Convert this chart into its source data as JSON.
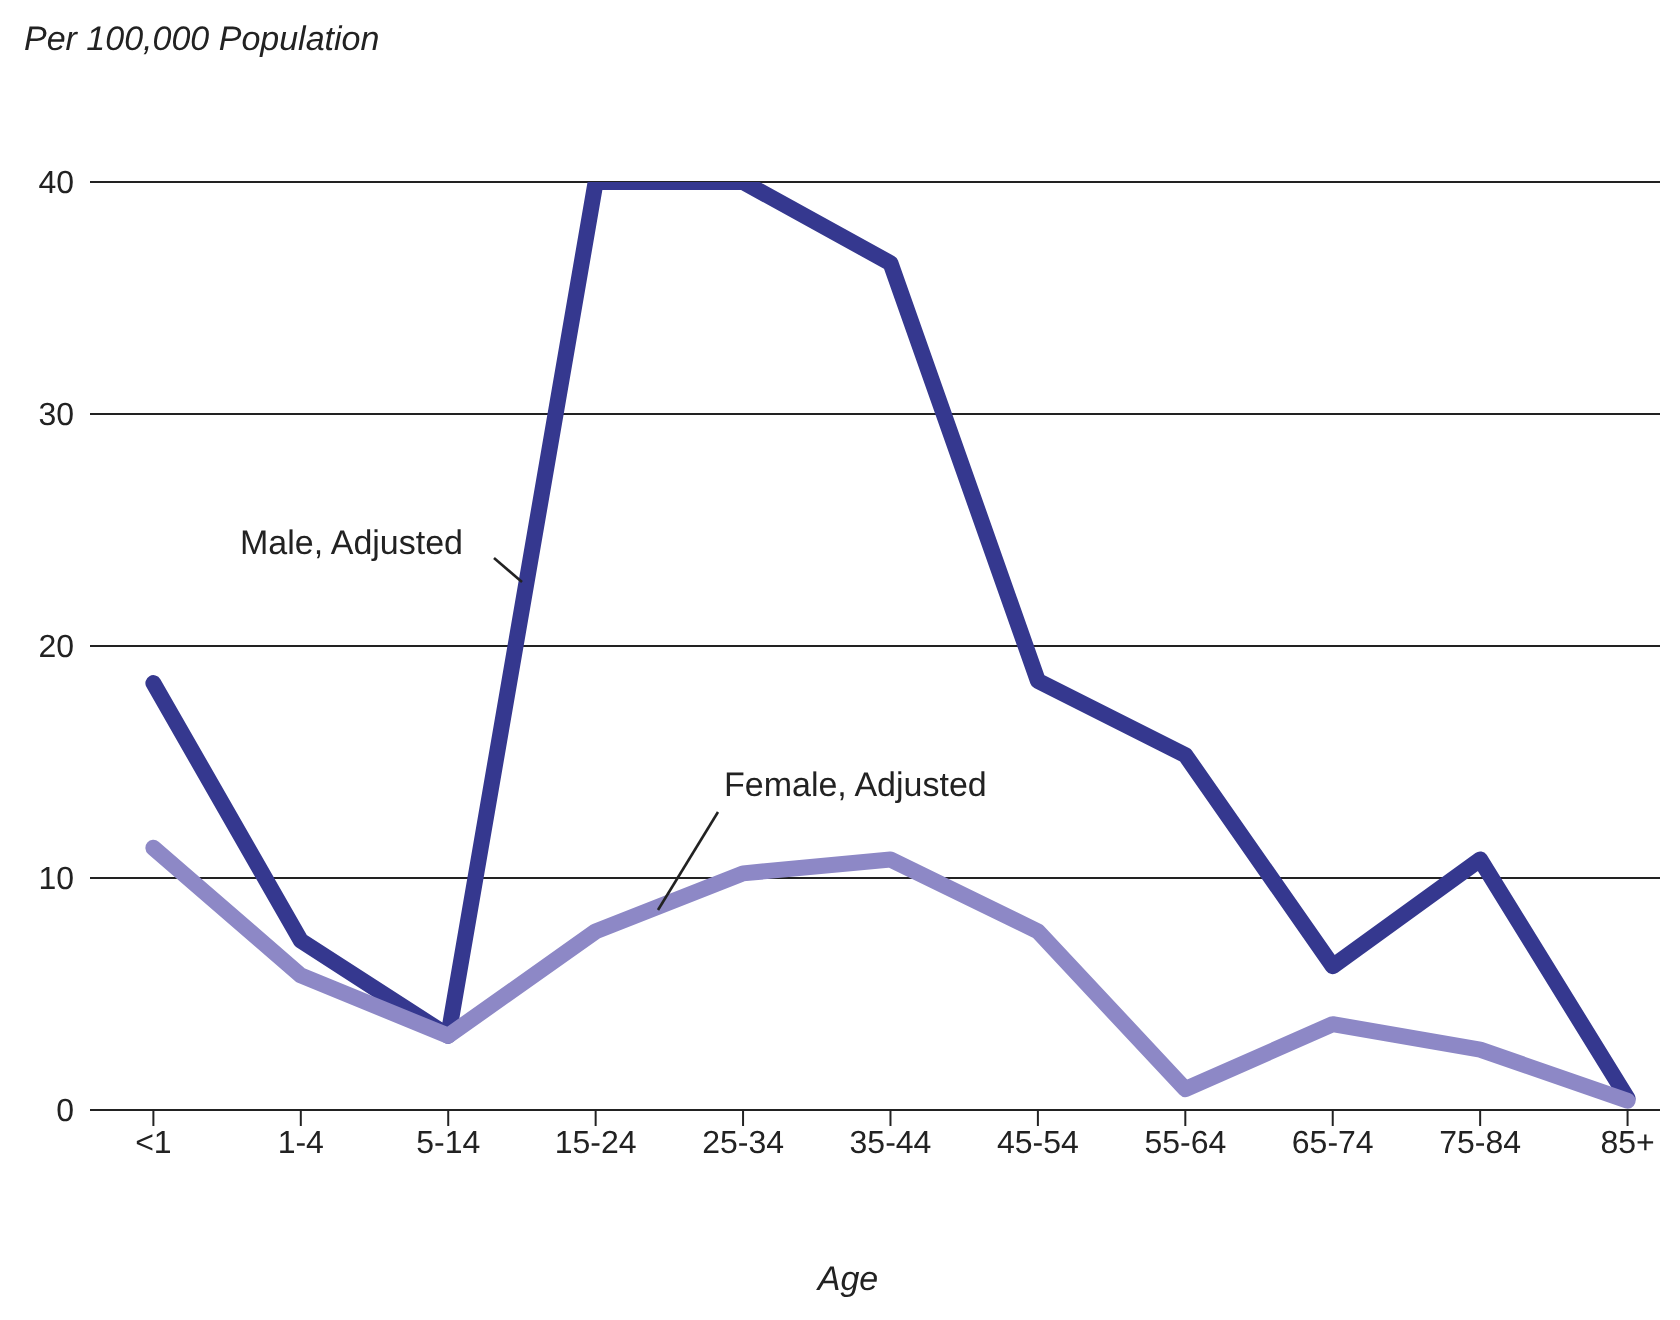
{
  "chart_data": {
    "type": "line",
    "ylabel": "Per 100,000 Population",
    "xlabel": "Age",
    "categories": [
      "<1",
      "1-4",
      "5-14",
      "15-24",
      "25-34",
      "35-44",
      "45-54",
      "55-64",
      "65-74",
      "75-84",
      "85+"
    ],
    "series": [
      {
        "name": "Male, Adjusted",
        "color": "#35388f",
        "values": [
          18.4,
          7.3,
          3.2,
          40,
          40,
          36.5,
          18.5,
          15.3,
          6.2,
          10.8,
          0.5
        ]
      },
      {
        "name": "Female, Adjusted",
        "color": "#8d88c6",
        "values": [
          11.3,
          5.8,
          3.2,
          7.7,
          10.2,
          10.8,
          7.7,
          0.9,
          3.7,
          2.6,
          0.4
        ]
      }
    ],
    "ylim": [
      0,
      40
    ],
    "yticks": [
      0,
      10,
      20,
      30,
      40
    ],
    "grid": "y",
    "marker": "none",
    "line_style": "solid"
  }
}
